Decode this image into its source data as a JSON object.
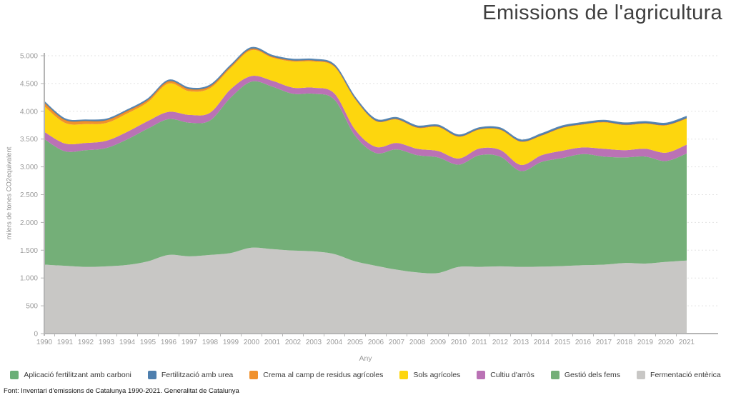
{
  "title": "Emissions de l'agricultura",
  "source_note": "Font: Inventari d'emissions de Catalunya 1990-2021. Generalitat de Catalunya",
  "chart_data": {
    "type": "area",
    "stacked": true,
    "stack_note": "stacking bottom-to-top is the reverse of legend order (Fermentació entèrica at bottom, Fertilització amb urea thin band on top)",
    "title": "Emissions de l'agricultura",
    "xlabel": "Any",
    "ylabel": "milers de tones CO2equivalent",
    "ylim": [
      0,
      5000
    ],
    "ytick_step": 500,
    "ytick_labels": [
      "0",
      "500",
      "1.000",
      "1.500",
      "2.000",
      "2.500",
      "3.000",
      "3.500",
      "4.000",
      "4.500",
      "5.000"
    ],
    "grid": "dashed horizontal gridlines",
    "legend_position": "bottom",
    "x": [
      1990,
      1991,
      1992,
      1993,
      1994,
      1995,
      1996,
      1997,
      1998,
      1999,
      2000,
      2001,
      2002,
      2003,
      2004,
      2005,
      2006,
      2007,
      2008,
      2009,
      2010,
      2011,
      2012,
      2013,
      2014,
      2015,
      2016,
      2017,
      2018,
      2019,
      2020,
      2021
    ],
    "series": [
      {
        "name": "Aplicació fertilitzant amb carboni",
        "color": "#6aaf77",
        "values": [
          0,
          0,
          0,
          0,
          0,
          0,
          0,
          0,
          0,
          0,
          0,
          0,
          0,
          0,
          0,
          0,
          0,
          0,
          0,
          0,
          0,
          0,
          0,
          0,
          0,
          0,
          0,
          0,
          0,
          0,
          0,
          0
        ]
      },
      {
        "name": "Fertilització amb urea",
        "color": "#4e7fae",
        "values": [
          20,
          20,
          20,
          20,
          20,
          20,
          20,
          20,
          22,
          22,
          22,
          22,
          22,
          22,
          22,
          22,
          25,
          25,
          25,
          25,
          25,
          25,
          25,
          25,
          28,
          28,
          28,
          28,
          30,
          30,
          30,
          32
        ]
      },
      {
        "name": "Crema al camp de residus agrícoles",
        "color": "#f0912d",
        "values": [
          65,
          55,
          55,
          50,
          45,
          40,
          40,
          40,
          35,
          30,
          25,
          20,
          20,
          20,
          15,
          15,
          12,
          12,
          12,
          12,
          10,
          10,
          10,
          10,
          10,
          10,
          10,
          10,
          10,
          10,
          10,
          12
        ]
      },
      {
        "name": "Sols agrícoles",
        "color": "#fdd60e",
        "values": [
          460,
          370,
          340,
          320,
          330,
          340,
          510,
          425,
          440,
          380,
          465,
          415,
          470,
          470,
          480,
          545,
          460,
          420,
          375,
          430,
          390,
          340,
          360,
          415,
          350,
          410,
          410,
          475,
          450,
          450,
          490,
          465
        ]
      },
      {
        "name": "Cultiu d'arròs",
        "color": "#ba72b5",
        "values": [
          130,
          140,
          130,
          130,
          135,
          135,
          130,
          140,
          140,
          150,
          100,
          105,
          110,
          110,
          110,
          110,
          110,
          115,
          115,
          115,
          110,
          120,
          120,
          110,
          120,
          130,
          120,
          140,
          130,
          140,
          150,
          160
        ]
      },
      {
        "name": "Gestió dels fems",
        "color": "#74af78",
        "values": [
          2260,
          2060,
          2100,
          2130,
          2260,
          2390,
          2445,
          2405,
          2420,
          2800,
          2990,
          2925,
          2820,
          2835,
          2780,
          2260,
          2030,
          2165,
          2110,
          2080,
          1840,
          2010,
          1975,
          1725,
          1885,
          1945,
          2000,
          1945,
          1900,
          1925,
          1815,
          1925
        ]
      },
      {
        "name": "Fermentació entèrica",
        "color": "#c8c7c5",
        "values": [
          1240,
          1220,
          1200,
          1210,
          1235,
          1300,
          1415,
          1390,
          1415,
          1450,
          1545,
          1520,
          1495,
          1480,
          1430,
          1300,
          1220,
          1150,
          1100,
          1090,
          1200,
          1200,
          1210,
          1200,
          1205,
          1215,
          1230,
          1240,
          1270,
          1260,
          1290,
          1315
        ]
      }
    ],
    "axis_colors": {
      "axis_line": "#b5b5b5",
      "gridline": "#e3e3e3",
      "tick_label": "#9b9b9b"
    }
  }
}
